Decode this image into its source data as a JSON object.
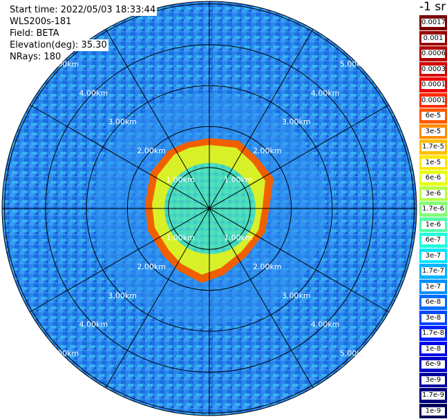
{
  "header": {
    "start_time": "Start time: 2022/05/03 18:33:44",
    "instrument": "WLS200s-181",
    "field": "Field: BETA",
    "elevation": "Elevation(deg): 35.30",
    "nrays": "NRays: 180"
  },
  "range_labels": [
    "1.00km",
    "2.00km",
    "3.00km",
    "4.00km",
    "5.00km"
  ],
  "colorbar": {
    "title": "-1 sr",
    "entries": [
      {
        "label": "0.0017",
        "color": "#7a0000"
      },
      {
        "label": "0.001",
        "color": "#980000"
      },
      {
        "label": "0.0006",
        "color": "#b40000"
      },
      {
        "label": "0.0003",
        "color": "#d20000"
      },
      {
        "label": "0.00017",
        "color": "#f00000"
      },
      {
        "label": "0.0001",
        "color": "#ff2a00"
      },
      {
        "label": "6e-5",
        "color": "#ff5a00"
      },
      {
        "label": "3e-5",
        "color": "#ff8c00"
      },
      {
        "label": "1.7e-5",
        "color": "#ffbe00"
      },
      {
        "label": "1e-5",
        "color": "#ffe600"
      },
      {
        "label": "6e-6",
        "color": "#e6ff10"
      },
      {
        "label": "3e-6",
        "color": "#b4ff44"
      },
      {
        "label": "1.7e-6",
        "color": "#82ff76"
      },
      {
        "label": "1e-6",
        "color": "#50ffa8"
      },
      {
        "label": "6e-7",
        "color": "#20ffd8"
      },
      {
        "label": "3e-7",
        "color": "#00e6ff"
      },
      {
        "label": "1.7e-7",
        "color": "#00b4ff"
      },
      {
        "label": "1e-7",
        "color": "#0090ff"
      },
      {
        "label": "6e-8",
        "color": "#006cff"
      },
      {
        "label": "3e-8",
        "color": "#0046ff"
      },
      {
        "label": "1.7e-8",
        "color": "#0020ff"
      },
      {
        "label": "1e-8",
        "color": "#0000f0"
      },
      {
        "label": "6e-9",
        "color": "#0000c8"
      },
      {
        "label": "3e-9",
        "color": "#0000a0"
      },
      {
        "label": "1.7e-9",
        "color": "#00007a"
      },
      {
        "label": "1e-9",
        "color": "#000058"
      }
    ]
  },
  "colors": {
    "background_field": "#2a8cf0",
    "outer_ring": "#1e7ad8",
    "inner_core": "#5af0a0",
    "aerosol_layer": "#d8f020",
    "layer_edge": "#f05a00"
  }
}
